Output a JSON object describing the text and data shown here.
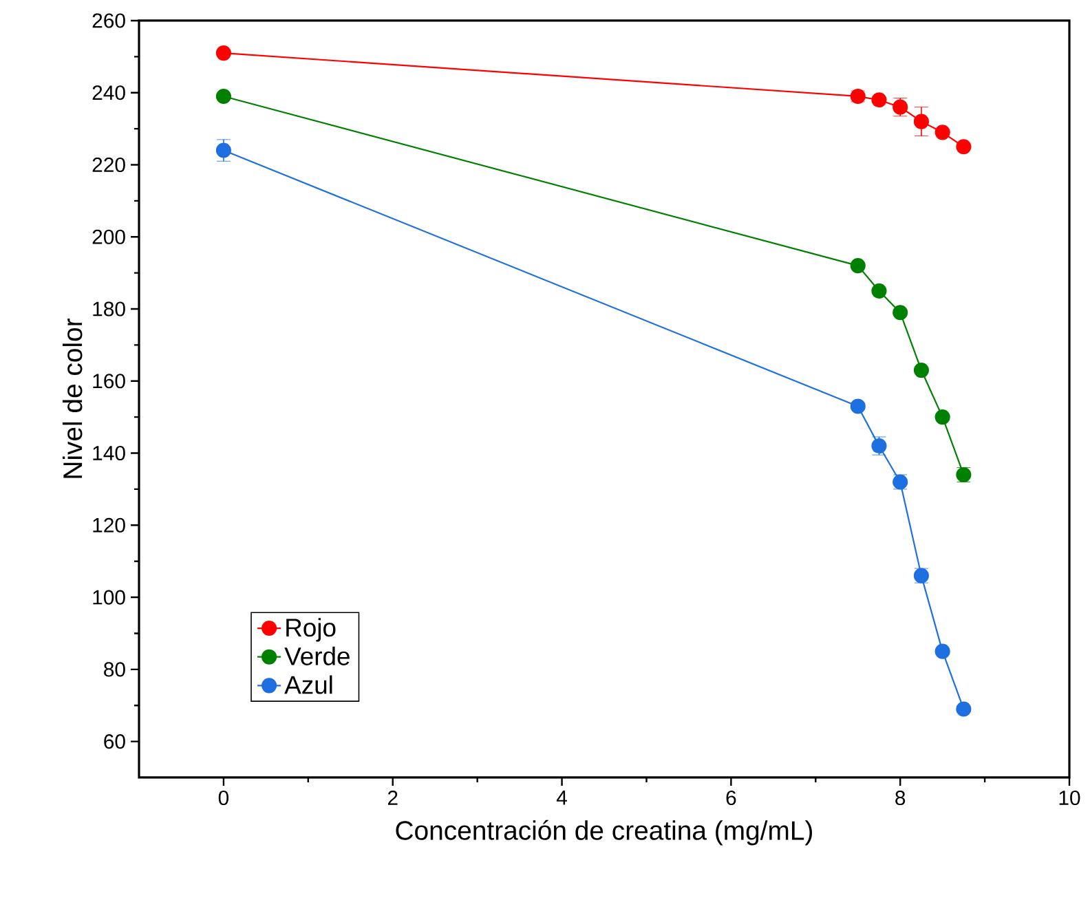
{
  "chart_data": {
    "type": "line",
    "xlabel": "Concentración de creatina (mg/mL)",
    "ylabel": "Nivel de color",
    "xlim": [
      -1,
      10
    ],
    "xticks": [
      0,
      2,
      4,
      6,
      8,
      10
    ],
    "ylim": [
      50,
      260
    ],
    "yticks": [
      60,
      80,
      100,
      120,
      140,
      160,
      180,
      200,
      220,
      240,
      260
    ],
    "x": [
      0,
      7.5,
      7.75,
      8,
      8.25,
      8.5,
      8.75
    ],
    "series": [
      {
        "name": "Rojo",
        "color": "#ff0000",
        "values": [
          251,
          239,
          238,
          236,
          232,
          229,
          225
        ],
        "errors": [
          null,
          1.5,
          null,
          2.5,
          4,
          null,
          null
        ]
      },
      {
        "name": "Verde",
        "color": "#008000",
        "values": [
          239,
          192,
          185,
          179,
          163,
          150,
          134
        ],
        "errors": [
          null,
          null,
          null,
          null,
          null,
          null,
          2
        ]
      },
      {
        "name": "Azul",
        "color": "#1e6fe0",
        "values": [
          224,
          153,
          142,
          132,
          106,
          85,
          69
        ],
        "errors": [
          3,
          null,
          2.5,
          2,
          2,
          null,
          null
        ]
      }
    ],
    "legend": "bottom left",
    "marker": "circle",
    "line_style": "solid",
    "grid": false
  }
}
